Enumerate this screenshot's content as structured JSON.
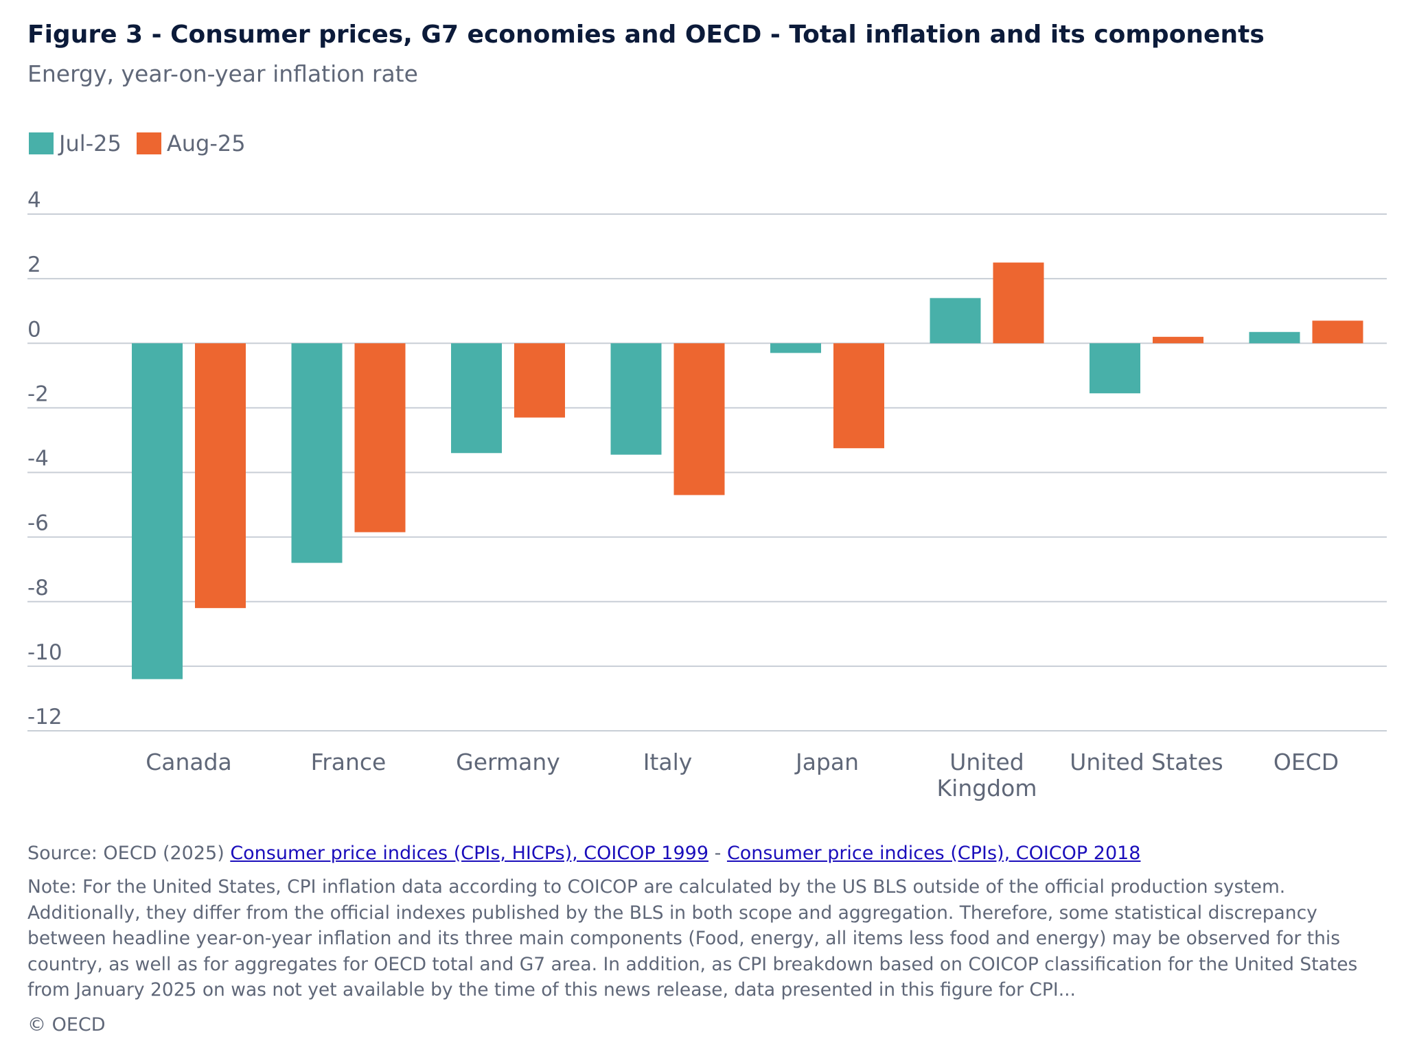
{
  "title": "Figure 3 - Consumer prices, G7 economies and OECD - Total inflation and its components",
  "subtitle": "Energy, year-on-year inflation rate",
  "colors": {
    "jul": "#48b0a9",
    "aug": "#ed6630",
    "grid": "#c8ced6",
    "title": "#0c1b3a",
    "text": "#5f6778",
    "link": "#1a0dbb"
  },
  "chart_data": {
    "type": "bar",
    "title": "",
    "xlabel": "",
    "ylabel": "",
    "categories": [
      "Canada",
      "France",
      "Germany",
      "Italy",
      "Japan",
      "United Kingdom",
      "United States",
      "OECD"
    ],
    "category_lines": [
      [
        "Canada"
      ],
      [
        "France"
      ],
      [
        "Germany"
      ],
      [
        "Italy"
      ],
      [
        "Japan"
      ],
      [
        "United",
        "Kingdom"
      ],
      [
        "United States"
      ],
      [
        "OECD"
      ]
    ],
    "series": [
      {
        "name": "Jul-25",
        "color": "#48b0a9",
        "values": [
          -10.4,
          -6.8,
          -3.4,
          -3.45,
          -0.3,
          1.4,
          -1.55,
          0.35
        ]
      },
      {
        "name": "Aug-25",
        "color": "#ed6630",
        "values": [
          -8.2,
          -5.85,
          -2.3,
          -4.7,
          -3.25,
          2.5,
          0.2,
          0.7
        ]
      }
    ],
    "yticks": [
      4,
      2,
      0,
      -2,
      -4,
      -6,
      -8,
      -10,
      -12
    ],
    "ylim": [
      -12,
      4
    ],
    "grid": true,
    "legend_position": "top-left"
  },
  "footer": {
    "source_prefix": "Source: OECD (2025) ",
    "link1": "Consumer price indices (CPIs, HICPs), COICOP 1999",
    "separator": " - ",
    "link2": "Consumer price indices (CPIs), COICOP 2018",
    "note": "Note: For the United States, CPI inflation data according to COICOP are calculated by the US BLS outside of the official production system. Additionally, they differ from the official indexes published by the BLS in both scope and aggregation. Therefore, some statistical discrepancy between headline year-on-year inflation and its three main components (Food, energy, all items less food and energy) may be observed for this country, as well as for aggregates for OECD total and G7 area. In addition, as CPI breakdown based on COICOP classification for the United States from January 2025 on was not yet available by the time of this news release, data presented in this figure for CPI...",
    "copyright": "© OECD"
  }
}
